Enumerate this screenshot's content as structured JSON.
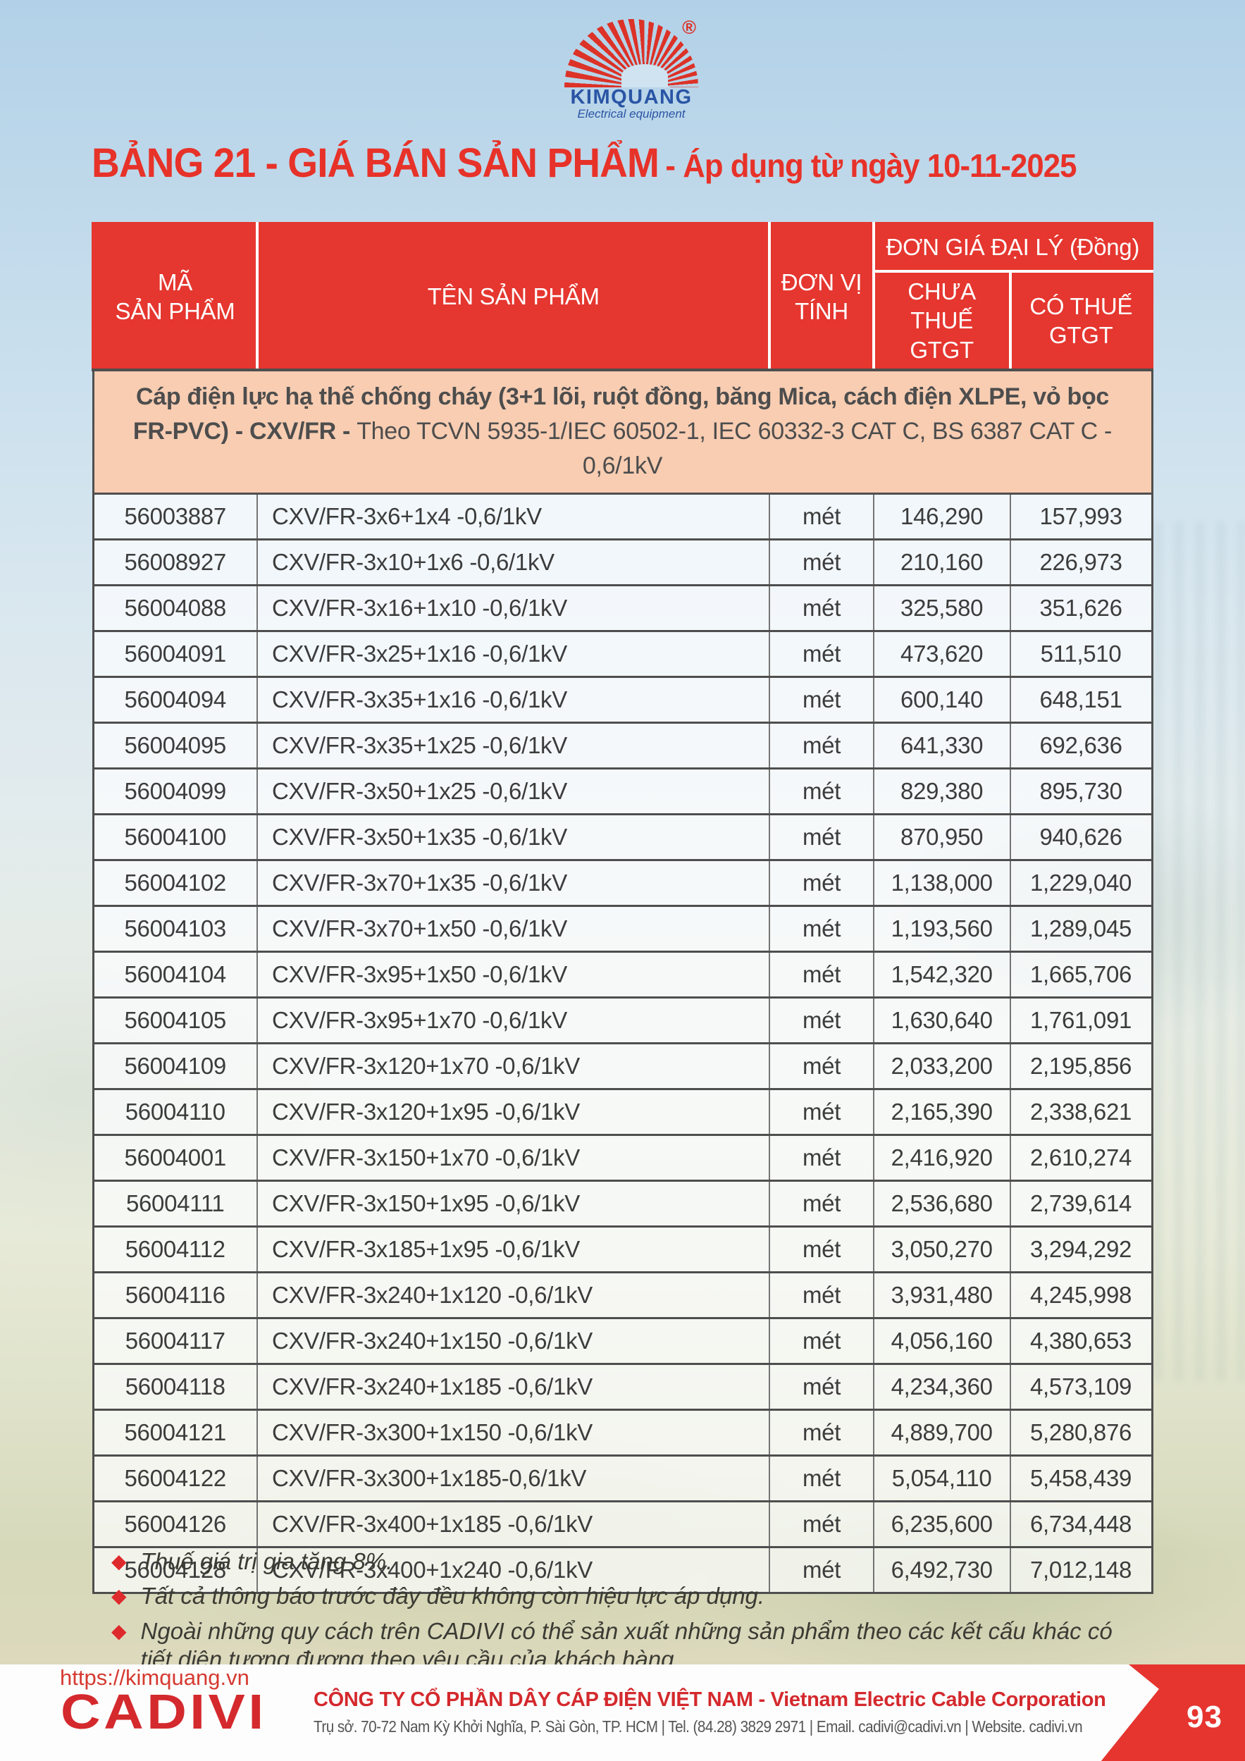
{
  "logo": {
    "brand": "KIMQUANG",
    "tagline": "Electrical equipment",
    "registered": "®"
  },
  "title": {
    "main": "BẢNG 21 - GIÁ BÁN SẢN PHẨM",
    "suffix": "- Áp dụng từ ngày 10-11-2025"
  },
  "table": {
    "headers": {
      "code": "MÃ\nSẢN PHẨM",
      "name": "TÊN SẢN PHẨM",
      "unit": "ĐƠN VỊ\nTÍNH",
      "price_group": "ĐƠN GIÁ ĐẠI LÝ (Đồng)",
      "price_ex_vat": "CHƯA THUẾ\nGTGT",
      "price_inc_vat": "CÓ THUẾ\nGTGT"
    },
    "section": {
      "bold_text": "Cáp điện lực hạ thế chống cháy (3+1 lõi, ruột đồng, băng Mica, cách điện XLPE, vỏ bọc FR-PVC) - CXV/FR - ",
      "regular_text": "Theo TCVN 5935-1/IEC 60502-1, IEC 60332-3 CAT C, BS 6387 CAT C - 0,6/1kV"
    },
    "rows": [
      {
        "code": "56003887",
        "name": "CXV/FR-3x6+1x4 -0,6/1kV",
        "unit": "mét",
        "price_ex_vat": "146,290",
        "price_inc_vat": "157,993"
      },
      {
        "code": "56008927",
        "name": "CXV/FR-3x10+1x6 -0,6/1kV",
        "unit": "mét",
        "price_ex_vat": "210,160",
        "price_inc_vat": "226,973"
      },
      {
        "code": "56004088",
        "name": "CXV/FR-3x16+1x10 -0,6/1kV",
        "unit": "mét",
        "price_ex_vat": "325,580",
        "price_inc_vat": "351,626"
      },
      {
        "code": "56004091",
        "name": "CXV/FR-3x25+1x16 -0,6/1kV",
        "unit": "mét",
        "price_ex_vat": "473,620",
        "price_inc_vat": "511,510"
      },
      {
        "code": "56004094",
        "name": "CXV/FR-3x35+1x16 -0,6/1kV",
        "unit": "mét",
        "price_ex_vat": "600,140",
        "price_inc_vat": "648,151"
      },
      {
        "code": "56004095",
        "name": "CXV/FR-3x35+1x25 -0,6/1kV",
        "unit": "mét",
        "price_ex_vat": "641,330",
        "price_inc_vat": "692,636"
      },
      {
        "code": "56004099",
        "name": "CXV/FR-3x50+1x25 -0,6/1kV",
        "unit": "mét",
        "price_ex_vat": "829,380",
        "price_inc_vat": "895,730"
      },
      {
        "code": "56004100",
        "name": "CXV/FR-3x50+1x35 -0,6/1kV",
        "unit": "mét",
        "price_ex_vat": "870,950",
        "price_inc_vat": "940,626"
      },
      {
        "code": "56004102",
        "name": "CXV/FR-3x70+1x35 -0,6/1kV",
        "unit": "mét",
        "price_ex_vat": "1,138,000",
        "price_inc_vat": "1,229,040"
      },
      {
        "code": "56004103",
        "name": "CXV/FR-3x70+1x50 -0,6/1kV",
        "unit": "mét",
        "price_ex_vat": "1,193,560",
        "price_inc_vat": "1,289,045"
      },
      {
        "code": "56004104",
        "name": "CXV/FR-3x95+1x50 -0,6/1kV",
        "unit": "mét",
        "price_ex_vat": "1,542,320",
        "price_inc_vat": "1,665,706"
      },
      {
        "code": "56004105",
        "name": "CXV/FR-3x95+1x70 -0,6/1kV",
        "unit": "mét",
        "price_ex_vat": "1,630,640",
        "price_inc_vat": "1,761,091"
      },
      {
        "code": "56004109",
        "name": "CXV/FR-3x120+1x70 -0,6/1kV",
        "unit": "mét",
        "price_ex_vat": "2,033,200",
        "price_inc_vat": "2,195,856"
      },
      {
        "code": "56004110",
        "name": "CXV/FR-3x120+1x95 -0,6/1kV",
        "unit": "mét",
        "price_ex_vat": "2,165,390",
        "price_inc_vat": "2,338,621"
      },
      {
        "code": "56004001",
        "name": "CXV/FR-3x150+1x70 -0,6/1kV",
        "unit": "mét",
        "price_ex_vat": "2,416,920",
        "price_inc_vat": "2,610,274"
      },
      {
        "code": "56004111",
        "name": "CXV/FR-3x150+1x95 -0,6/1kV",
        "unit": "mét",
        "price_ex_vat": "2,536,680",
        "price_inc_vat": "2,739,614"
      },
      {
        "code": "56004112",
        "name": "CXV/FR-3x185+1x95 -0,6/1kV",
        "unit": "mét",
        "price_ex_vat": "3,050,270",
        "price_inc_vat": "3,294,292"
      },
      {
        "code": "56004116",
        "name": "CXV/FR-3x240+1x120 -0,6/1kV",
        "unit": "mét",
        "price_ex_vat": "3,931,480",
        "price_inc_vat": "4,245,998"
      },
      {
        "code": "56004117",
        "name": "CXV/FR-3x240+1x150 -0,6/1kV",
        "unit": "mét",
        "price_ex_vat": "4,056,160",
        "price_inc_vat": "4,380,653"
      },
      {
        "code": "56004118",
        "name": "CXV/FR-3x240+1x185 -0,6/1kV",
        "unit": "mét",
        "price_ex_vat": "4,234,360",
        "price_inc_vat": "4,573,109"
      },
      {
        "code": "56004121",
        "name": "CXV/FR-3x300+1x150 -0,6/1kV",
        "unit": "mét",
        "price_ex_vat": "4,889,700",
        "price_inc_vat": "5,280,876"
      },
      {
        "code": "56004122",
        "name": "CXV/FR-3x300+1x185-0,6/1kV",
        "unit": "mét",
        "price_ex_vat": "5,054,110",
        "price_inc_vat": "5,458,439"
      },
      {
        "code": "56004126",
        "name": "CXV/FR-3x400+1x185 -0,6/1kV",
        "unit": "mét",
        "price_ex_vat": "6,235,600",
        "price_inc_vat": "6,734,448"
      },
      {
        "code": "56004128",
        "name": "CXV/FR-3x400+1x240 -0,6/1kV",
        "unit": "mét",
        "price_ex_vat": "6,492,730",
        "price_inc_vat": "7,012,148"
      }
    ]
  },
  "notes": {
    "bullet": "◆",
    "items": [
      "Thuế giá trị gia tăng 8%.",
      "Tất cả thông báo trước đây đều không còn hiệu lực áp dụng.",
      "Ngoài những quy cách trên CADIVI có thể sản xuất những sản phẩm theo các kết cấu khác có tiết diện tương đương theo yêu cầu của khách hàng."
    ]
  },
  "footer": {
    "website": "https://kimquang.vn",
    "cadivi_logo": "CADIVI",
    "company_name": "CÔNG TY CỔ PHẦN DÂY CÁP ĐIỆN VIỆT NAM - Vietnam Electric Cable Corporation",
    "address": "Trụ sở. 70-72 Nam Kỳ Khởi Nghĩa, P. Sài Gòn, TP. HCM | Tel. (84.28) 3829 2971 | Email. cadivi@cadivi.vn | Website. cadivi.vn",
    "page_number": "93"
  },
  "colors": {
    "header_red": "#e5362f",
    "title_red": "#e73229",
    "section_peach": "#f8cdb2",
    "brand_blue": "#2a55a5",
    "cadivi_red": "#d4292d",
    "ray_red": "#dc3227"
  }
}
